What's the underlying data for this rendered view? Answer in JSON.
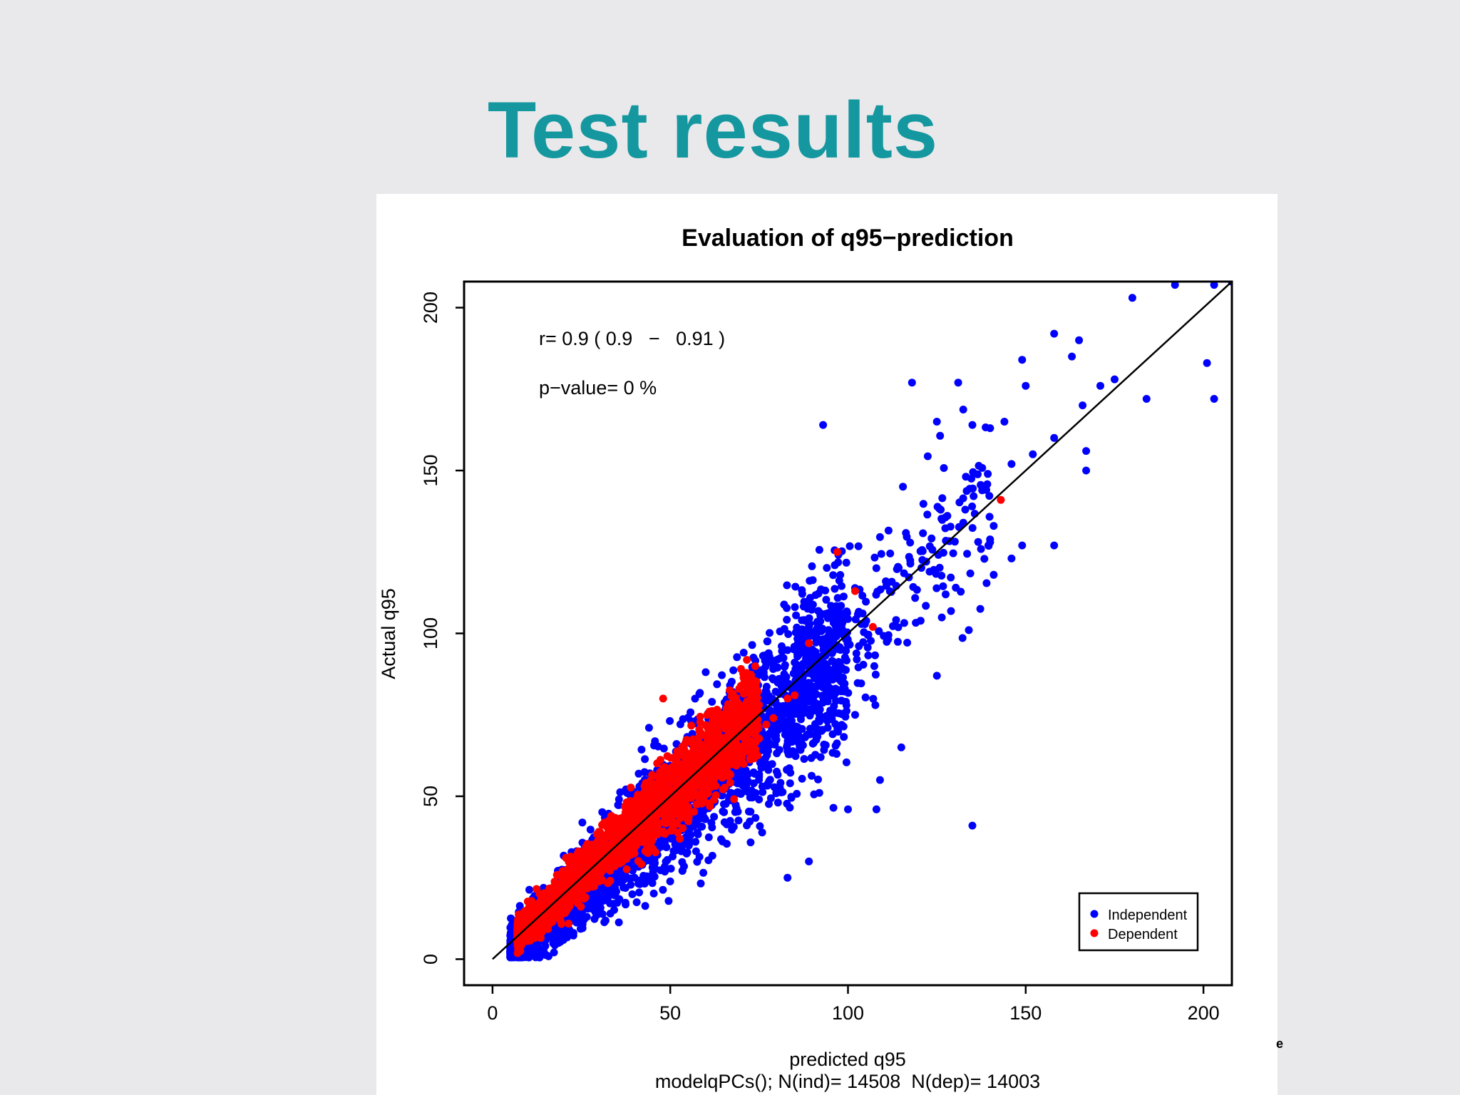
{
  "slide": {
    "title": "Test results",
    "stray_mark": "e"
  },
  "chart_data": {
    "type": "scatter",
    "title": "Evaluation of q95−prediction",
    "xlabel": "predicted q95",
    "subtitle": "modelqPCs(); N(ind)= 14508  N(dep)= 14003",
    "ylabel": "Actual q95",
    "xlim": [
      -8,
      208
    ],
    "ylim": [
      -8,
      208
    ],
    "x_ticks": [
      0,
      50,
      100,
      150,
      200
    ],
    "y_ticks": [
      0,
      50,
      100,
      150,
      200
    ],
    "grid": false,
    "legend_position": "bottom-right",
    "annotations": {
      "correlation": "r= 0.9 ( 0.9   −   0.91 )",
      "p_value": "p−value= 0 %"
    },
    "reference_line": {
      "x": [
        0,
        208
      ],
      "y": [
        0,
        208
      ],
      "color": "#000000"
    },
    "series": [
      {
        "name": "Independent",
        "color": "#0000ff",
        "highlight_points": [
          [
            180,
            203
          ],
          [
            192,
            207
          ],
          [
            203,
            207
          ],
          [
            208,
            208
          ],
          [
            165,
            190
          ],
          [
            158,
            192
          ],
          [
            149,
            184
          ],
          [
            201,
            183
          ],
          [
            203,
            172
          ],
          [
            171,
            176
          ],
          [
            175,
            178
          ],
          [
            184,
            172
          ],
          [
            163,
            185
          ],
          [
            166,
            170
          ],
          [
            118,
            177
          ],
          [
            131,
            177
          ],
          [
            150,
            176
          ],
          [
            93,
            164
          ],
          [
            125,
            165
          ],
          [
            135,
            164
          ],
          [
            140,
            163
          ],
          [
            144,
            165
          ],
          [
            158,
            160
          ],
          [
            167,
            156
          ],
          [
            152,
            155
          ],
          [
            167,
            150
          ],
          [
            146,
            152
          ],
          [
            133,
            138
          ],
          [
            141,
            133
          ],
          [
            140,
            128
          ],
          [
            149,
            127
          ],
          [
            146,
            123
          ],
          [
            158,
            127
          ],
          [
            141,
            118
          ],
          [
            134,
            101
          ],
          [
            125,
            87
          ],
          [
            135,
            41
          ],
          [
            83,
            25
          ],
          [
            89,
            30
          ],
          [
            100,
            46
          ],
          [
            108,
            46
          ],
          [
            109,
            55
          ],
          [
            115,
            65
          ],
          [
            102,
            75
          ],
          [
            92,
            75
          ]
        ]
      },
      {
        "name": "Dependent",
        "color": "#ff0000",
        "highlight_points": [
          [
            97,
            125
          ],
          [
            102,
            113
          ],
          [
            107,
            102
          ],
          [
            89,
            97
          ],
          [
            143,
            141
          ],
          [
            48,
            80
          ],
          [
            77,
            72
          ],
          [
            79,
            74
          ],
          [
            83,
            80
          ],
          [
            85,
            81
          ]
        ]
      }
    ],
    "counts": {
      "independent": 14508,
      "dependent": 14003
    },
    "pearson_r": 0.9,
    "r_ci": [
      0.9,
      0.91
    ],
    "p_value_percent": 0
  }
}
